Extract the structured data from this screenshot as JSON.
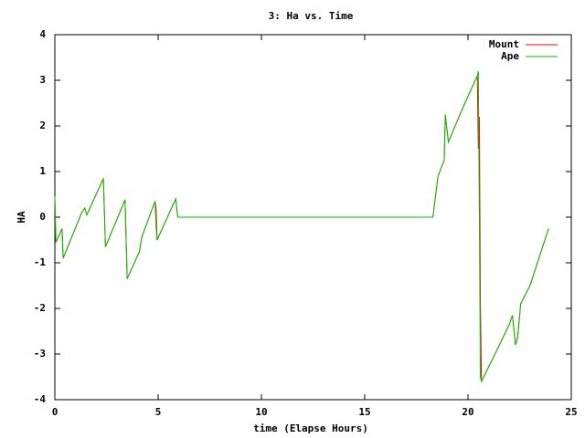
{
  "chart_data": {
    "type": "line",
    "title": "3: Ha vs. Time",
    "x_label": "time (Elapse Hours)",
    "y_label": "HA",
    "x": [
      0,
      0.05,
      0.3,
      0.35,
      0.4,
      1.3,
      1.45,
      1.55,
      2.25,
      2.35,
      2.45,
      3.4,
      3.5,
      4.1,
      4.2,
      4.85,
      4.9,
      4.95,
      5.85,
      5.95,
      18.3,
      18.55,
      18.85,
      18.9,
      19.05,
      19.8,
      20.45,
      20.5,
      20.55,
      20.6,
      20.65,
      21.2,
      22.0,
      22.15,
      22.3,
      22.4,
      22.55,
      23.0,
      23.9
    ],
    "series": [
      {
        "name": "Mount",
        "color": "#ff0000",
        "values": [
          0.45,
          -0.55,
          -0.3,
          -0.25,
          -0.9,
          0.1,
          0.2,
          0.05,
          0.75,
          0.85,
          -0.65,
          0.38,
          -1.35,
          -0.75,
          -0.45,
          0.35,
          0.2,
          -0.5,
          0.4,
          0,
          0,
          0.9,
          1.25,
          2.25,
          1.65,
          2.45,
          3.1,
          1.5,
          2.2,
          -1.9,
          -3.6,
          -3.1,
          -2.35,
          -2.15,
          -2.8,
          -2.65,
          -1.9,
          -1.5,
          -0.25
        ]
      },
      {
        "name": "Ape",
        "color": "#00c000",
        "values": [
          0.45,
          -0.55,
          -0.3,
          -0.25,
          -0.9,
          0.1,
          0.2,
          0.05,
          0.75,
          0.85,
          -0.65,
          0.38,
          -1.35,
          -0.75,
          -0.45,
          0.35,
          -0.2,
          -0.5,
          0.4,
          0,
          0,
          0.9,
          1.25,
          2.25,
          1.65,
          2.45,
          3.1,
          3.2,
          0,
          -3.5,
          -3.6,
          -3.1,
          -2.35,
          -2.15,
          -2.8,
          -2.65,
          -1.9,
          -1.5,
          -0.25
        ]
      }
    ],
    "xlim": [
      0,
      25
    ],
    "xticks": [
      0,
      5,
      10,
      15,
      20,
      25
    ],
    "ylim": [
      -4,
      4
    ],
    "yticks": [
      -4,
      -3,
      -2,
      -1,
      0,
      1,
      2,
      3,
      4
    ],
    "grid": false,
    "legend": "top-right"
  }
}
